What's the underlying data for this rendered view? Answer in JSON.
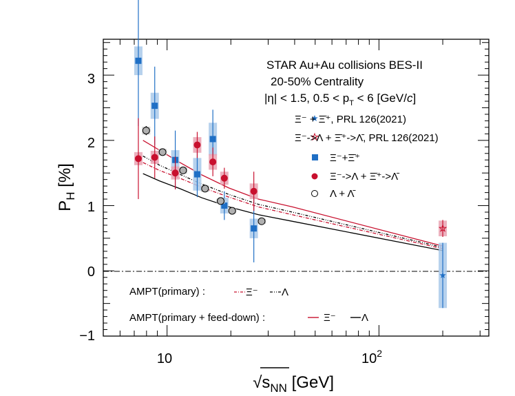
{
  "chart_data": {
    "type": "scatter",
    "annotations": {
      "line1": "STAR  Au+Au collisions BES-II",
      "line2": "20-50% Centrality",
      "line3_eta": "|η| < 1.5, 0.5 < p",
      "line3_ptsub": "T",
      "line3_tail": " < 6 [GeV/",
      "line3_c": "c",
      "line3_end": "]"
    },
    "xlabel": {
      "prefix": "√",
      "s": "s",
      "sub": "NN",
      "unit": " [GeV]"
    },
    "ylabel": {
      "p": "P",
      "sub": "H",
      "unit": " [%]"
    },
    "x_scale": "log",
    "xlim": [
      5,
      330
    ],
    "ylim": [
      -1,
      3.55
    ],
    "x_tick_labels": [
      "10",
      "10"
    ],
    "x_tick_sup": "2",
    "y_ticks": [
      -1,
      0,
      1,
      2,
      3
    ],
    "y_tick_labels": [
      "−1",
      "0",
      "1",
      "2",
      "3"
    ],
    "legend": {
      "prl_xi": "Ξ⁻ + Ξ̄⁺, PRL 126(2021)",
      "prl_feed": "Ξ⁻->Λ + Ξ̄⁺->Λ̄, PRL 126(2021)",
      "xi": "Ξ⁻+Ξ̄⁺",
      "feed": "Ξ⁻->Λ + Ξ̄⁺->Λ̄",
      "lambda": "Λ + Λ̄"
    },
    "ampt_legend": {
      "primary_label": "AMPT(primary) :",
      "primary_xi": "Ξ⁻",
      "primary_lambda": "Λ",
      "feed_label": "AMPT(primary + feed-down) :",
      "feed_xi": "Ξ⁻",
      "feed_lambda": "Λ"
    },
    "colors": {
      "xi": "#1f6fc5",
      "xi_sys": "#a9c9ea",
      "feed": "#c8102e",
      "feed_sys": "#e9a3b3",
      "lambda_fill": "#9a9a9a",
      "black": "#000000"
    },
    "series": [
      {
        "name": "Ξ⁻+Ξ̄⁺",
        "marker": "square",
        "x": [
          7.7,
          9.2,
          11.5,
          14.6,
          17.3,
          19.6,
          27
        ],
        "y": [
          3.22,
          2.53,
          1.7,
          1.48,
          2.02,
          1.0,
          0.65
        ],
        "err": [
          1.0,
          0.6,
          0.45,
          0.35,
          0.45,
          0.22,
          0.52
        ],
        "sys": [
          0.22,
          0.2,
          0.15,
          0.25,
          0.25,
          0.12,
          0.15
        ]
      },
      {
        "name": "Ξ⁻->Λ + Ξ̄⁺->Λ̄",
        "marker": "circle",
        "x": [
          7.7,
          9.2,
          11.5,
          14.6,
          17.3,
          19.6,
          27
        ],
        "y": [
          1.72,
          1.74,
          1.5,
          1.93,
          1.67,
          1.42,
          1.22
        ],
        "err": [
          0.62,
          0.32,
          0.25,
          0.2,
          0.22,
          0.16,
          0.3
        ],
        "sys": [
          0.1,
          0.1,
          0.1,
          0.12,
          0.12,
          0.1,
          0.12
        ]
      },
      {
        "name": "Λ + Λ̄",
        "marker": "open-circle",
        "x": [
          7.7,
          9.2,
          11.5,
          14.6,
          17.3,
          19.6,
          27
        ],
        "y": [
          2.15,
          1.82,
          1.54,
          1.26,
          1.07,
          0.92,
          0.76
        ],
        "err": [
          0.07,
          0.05,
          0.04,
          0.04,
          0.03,
          0.03,
          0.03
        ],
        "sys": [
          0.06,
          0.05,
          0.05,
          0.05,
          0.04,
          0.04,
          0.04
        ]
      },
      {
        "name": "Ξ⁻ + Ξ̄⁺, PRL 126(2021)",
        "marker": "star",
        "x": [
          200
        ],
        "y": [
          -0.07
        ],
        "err": [
          0.5
        ],
        "sys": [
          0.5
        ]
      },
      {
        "name": "Ξ⁻->Λ + Ξ̄⁺->Λ̄, PRL 126(2021)",
        "marker": "open-star",
        "x": [
          200
        ],
        "y": [
          0.65
        ],
        "err": [
          0.13
        ],
        "sys": [
          0.12
        ]
      }
    ],
    "curves": [
      {
        "name": "AMPT(primary) Ξ⁻",
        "style": "dash-dot",
        "color": "#c8102e",
        "x": [
          7.7,
          9.2,
          11.5,
          14.6,
          19.6,
          27,
          39,
          200
        ],
        "y": [
          1.66,
          1.54,
          1.42,
          1.28,
          1.13,
          0.98,
          0.86,
          0.34
        ]
      },
      {
        "name": "AMPT(primary) Λ",
        "style": "dash-dot-dot",
        "color": "#000000",
        "x": [
          7.7,
          9.2,
          11.5,
          14.6,
          19.6,
          27,
          39,
          200
        ],
        "y": [
          1.76,
          1.62,
          1.48,
          1.33,
          1.17,
          1.02,
          0.9,
          0.36
        ]
      },
      {
        "name": "AMPT(primary + feed-down) Ξ⁻",
        "style": "solid",
        "color": "#c8102e",
        "x": [
          7.7,
          9.2,
          11.5,
          14.6,
          19.6,
          27,
          39,
          200
        ],
        "y": [
          2.0,
          1.85,
          1.66,
          1.47,
          1.27,
          1.1,
          0.98,
          0.38
        ]
      },
      {
        "name": "AMPT(primary + feed-down) Λ",
        "style": "solid",
        "color": "#000000",
        "x": [
          7.7,
          9.2,
          11.5,
          14.6,
          19.6,
          27,
          39,
          200
        ],
        "y": [
          1.49,
          1.38,
          1.26,
          1.12,
          0.98,
          0.86,
          0.76,
          0.31
        ]
      }
    ]
  }
}
